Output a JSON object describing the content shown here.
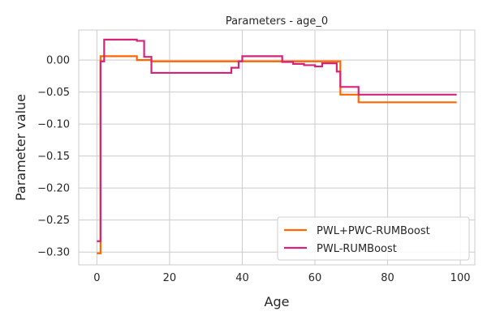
{
  "chart_data": {
    "type": "line",
    "title": "Parameters - age_0",
    "xlabel": "Age",
    "ylabel": "Parameter value",
    "xlim": [
      -5,
      104
    ],
    "ylim": [
      -0.32,
      0.047
    ],
    "xticks": [
      0,
      20,
      40,
      60,
      80,
      100
    ],
    "yticks": [
      0.0,
      -0.05,
      -0.1,
      -0.15,
      -0.2,
      -0.25,
      -0.3
    ],
    "xtick_labels": [
      "0",
      "20",
      "40",
      "60",
      "80",
      "100"
    ],
    "ytick_labels": [
      "0.00",
      "−0.05",
      "−0.10",
      "−0.15",
      "−0.20",
      "−0.25",
      "−0.30"
    ],
    "grid": true,
    "legend": {
      "position": "lower-right"
    },
    "series": [
      {
        "name": "PWL+PWC-RUMBoost",
        "color": "#ff6600",
        "step": "post",
        "x": [
          0,
          1,
          11,
          15,
          67,
          72,
          99
        ],
        "y": [
          -0.302,
          0.006,
          0.0,
          -0.002,
          -0.054,
          -0.066,
          -0.066
        ]
      },
      {
        "name": "PWL-RUMBoost",
        "color": "#d6237a",
        "step": "post",
        "x": [
          0,
          1,
          2,
          11,
          13,
          15,
          16,
          37,
          39,
          40,
          51,
          54,
          57,
          60,
          62,
          66,
          67,
          72,
          99
        ],
        "y": [
          -0.283,
          -0.002,
          0.032,
          0.03,
          0.005,
          -0.02,
          -0.02,
          -0.012,
          -0.002,
          0.006,
          -0.003,
          -0.006,
          -0.008,
          -0.01,
          -0.005,
          -0.018,
          -0.042,
          -0.054,
          -0.054
        ]
      }
    ]
  }
}
